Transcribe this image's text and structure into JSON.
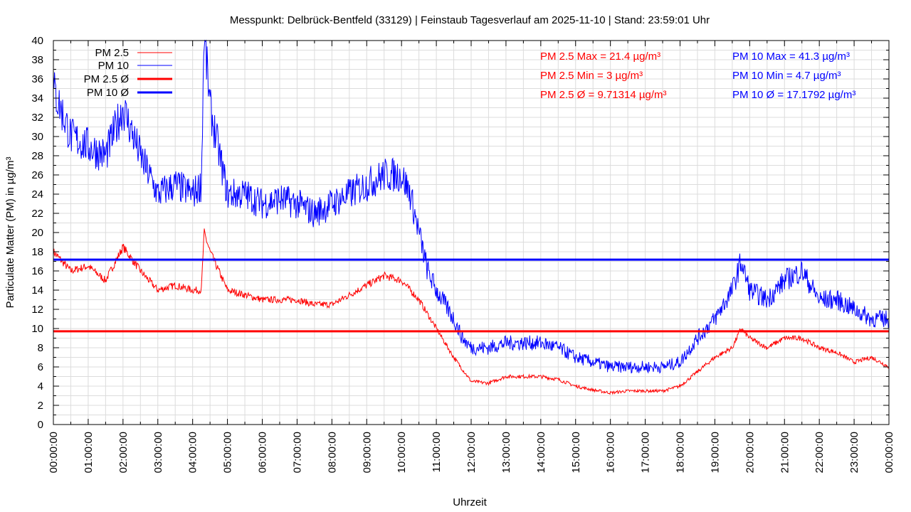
{
  "chart_data": {
    "type": "line",
    "title": "Messpunkt: Delbrück-Bentfeld (33129) | Feinstaub Tagesverlauf am 2025-11-10 | Stand: 23:59:01 Uhr",
    "xlabel": "Uhrzeit",
    "ylabel": "Particulate Matter (PM) in µg/m³",
    "xlim": [
      0,
      24
    ],
    "ylim": [
      0,
      40
    ],
    "grid": true,
    "x_tick_labels": [
      "00:00:00",
      "01:00:00",
      "02:00:00",
      "03:00:00",
      "04:00:00",
      "05:00:00",
      "06:00:00",
      "07:00:00",
      "08:00:00",
      "09:00:00",
      "10:00:00",
      "11:00:00",
      "12:00:00",
      "13:00:00",
      "14:00:00",
      "15:00:00",
      "16:00:00",
      "17:00:00",
      "18:00:00",
      "19:00:00",
      "20:00:00",
      "21:00:00",
      "22:00:00",
      "23:00:00",
      "00:00:00"
    ],
    "y_ticks": [
      0,
      2,
      4,
      6,
      8,
      10,
      12,
      14,
      16,
      18,
      20,
      22,
      24,
      26,
      28,
      30,
      32,
      34,
      36,
      38,
      40
    ],
    "legend_position": "top-left",
    "series": [
      {
        "name": "PM 2.5",
        "color": "#ff0000",
        "x": [
          0,
          0.5,
          1,
          1.5,
          2,
          2.5,
          3,
          3.5,
          4,
          4.25,
          4.33,
          4.5,
          5,
          5.5,
          6,
          6.5,
          7,
          7.5,
          8,
          8.5,
          9,
          9.5,
          10,
          10.5,
          11,
          11.5,
          12,
          12.5,
          13,
          13.5,
          14,
          14.5,
          15,
          15.5,
          16,
          16.5,
          17,
          17.5,
          18,
          18.5,
          19,
          19.5,
          19.75,
          20,
          20.5,
          21,
          21.5,
          22,
          22.5,
          23,
          23.5,
          24
        ],
        "y": [
          18,
          16,
          16.5,
          15,
          18.5,
          16,
          14,
          14.5,
          14,
          14,
          20,
          18,
          14,
          13.5,
          13,
          13,
          13,
          12.5,
          12.5,
          13.5,
          14.5,
          15.5,
          15,
          13,
          10,
          7,
          4.5,
          4.3,
          5,
          5,
          5,
          4.7,
          4,
          3.6,
          3.3,
          3.5,
          3.5,
          3.5,
          4,
          5.5,
          7,
          8,
          10,
          9,
          8,
          9,
          9,
          8,
          7.5,
          6.5,
          7,
          6
        ]
      },
      {
        "name": "PM 10",
        "color": "#0000ff",
        "x": [
          0,
          0.5,
          1,
          1.5,
          2,
          2.5,
          3,
          3.5,
          4,
          4.25,
          4.33,
          4.5,
          5,
          5.5,
          6,
          6.5,
          7,
          7.5,
          8,
          8.5,
          9,
          9.5,
          10,
          10.25,
          10.5,
          10.75,
          11,
          11.5,
          11.75,
          12,
          12.5,
          13,
          13.5,
          14,
          14.5,
          15,
          15.5,
          16,
          16.5,
          17,
          17.5,
          18,
          18.5,
          19,
          19.5,
          19.75,
          20,
          20.5,
          21,
          21.5,
          22,
          22.5,
          23,
          23.5,
          24
        ],
        "y": [
          35,
          30,
          29,
          28,
          33,
          28,
          24,
          25,
          24,
          25,
          41,
          33,
          24,
          24,
          23,
          23.5,
          23,
          22,
          23,
          24,
          25,
          26,
          26,
          24,
          20,
          16,
          14,
          11,
          9,
          8,
          8,
          8.5,
          8.5,
          8.5,
          8,
          7,
          6.5,
          6,
          6,
          6,
          6,
          6.5,
          9,
          11,
          14,
          17,
          14,
          13,
          15,
          16,
          13,
          13,
          12,
          11,
          11
        ]
      },
      {
        "name": "PM 2.5 Ø",
        "color": "#ff0000",
        "constant": 9.71314
      },
      {
        "name": "PM 10 Ø",
        "color": "#0000ff",
        "constant": 17.1792
      }
    ],
    "annotations": {
      "pm25_max": "PM 2.5 Max = 21.4 µg/m³",
      "pm25_min": "PM 2.5 Min = 3 µg/m³",
      "pm25_avg": "PM 2.5 Ø = 9.71314 µg/m³",
      "pm10_max": "PM 10 Max = 41.3 µg/m³",
      "pm10_min": "PM 10 Min = 4.7 µg/m³",
      "pm10_avg": "PM 10 Ø = 17.1792 µg/m³"
    }
  }
}
